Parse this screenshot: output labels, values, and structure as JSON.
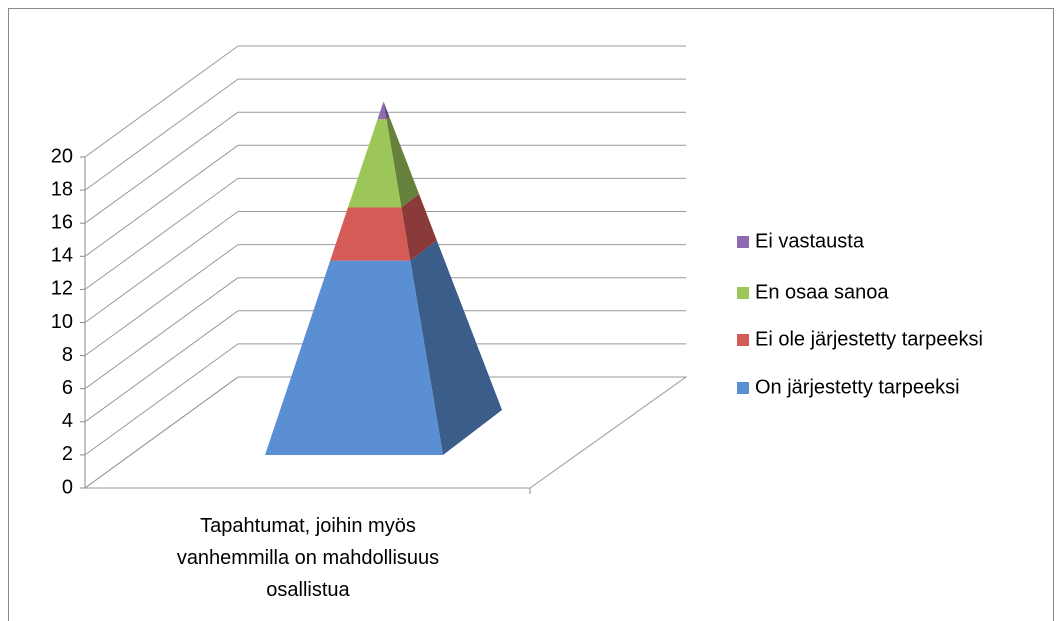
{
  "chart_data": {
    "type": "pyramid3d",
    "categories": [
      "Tapahtumat, joihin myös vanhemmilla on mahdollisuus osallistua"
    ],
    "series": [
      {
        "name": "On järjestetty tarpeeksi",
        "color": "#5a8fd4",
        "values": [
          11
        ]
      },
      {
        "name": "Ei ole järjestetty tarpeeksi",
        "color": "#d55b57",
        "values": [
          3
        ]
      },
      {
        "name": "En osaa sanoa",
        "color": "#9dc65a",
        "values": [
          5
        ]
      },
      {
        "name": "Ei vastausta",
        "color": "#8e6ab3",
        "values": [
          1
        ]
      }
    ],
    "ylim": [
      0,
      20
    ],
    "yticks": [
      0,
      2,
      4,
      6,
      8,
      10,
      12,
      14,
      16,
      18,
      20
    ],
    "grid": true
  }
}
